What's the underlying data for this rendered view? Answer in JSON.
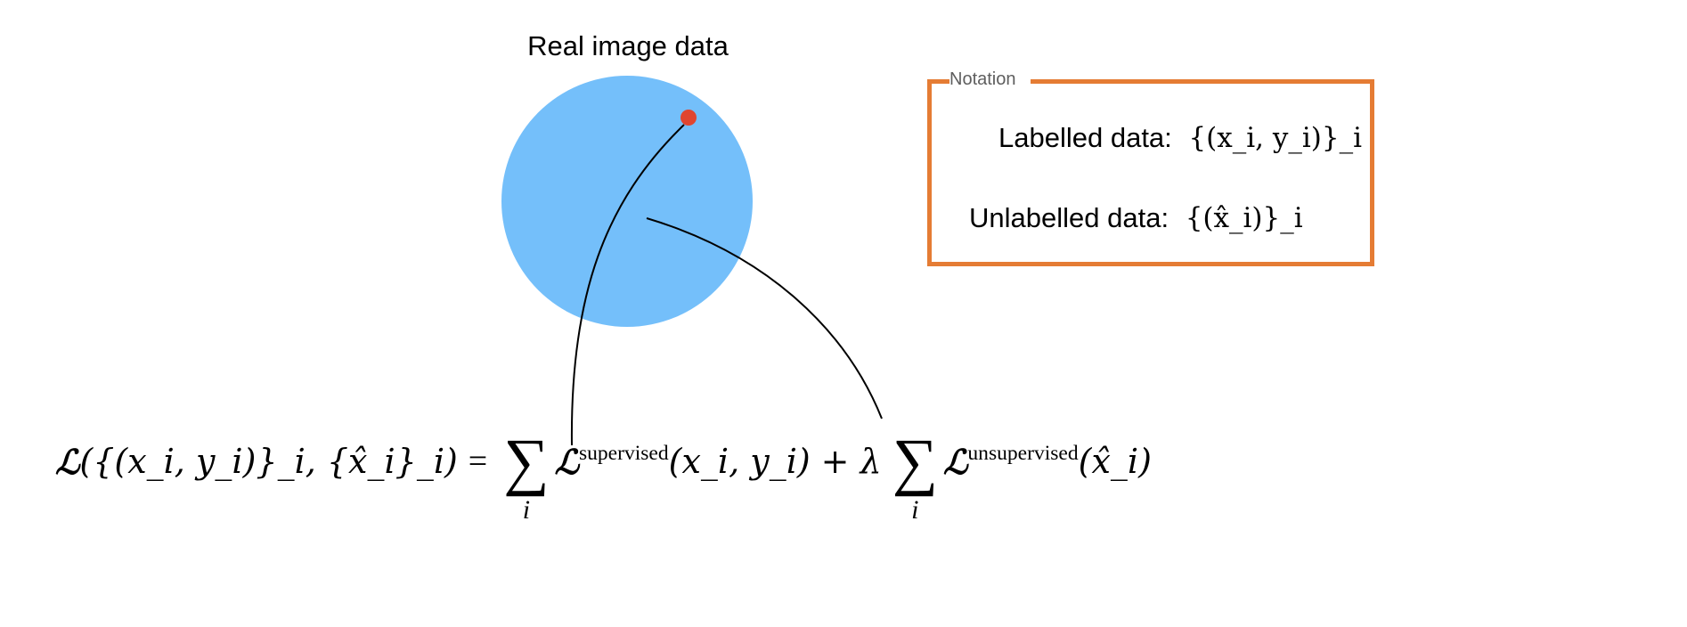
{
  "diagram": {
    "title": "Real image data",
    "colors": {
      "data_circle": "#74bffa",
      "labelled_point": "#e04530",
      "notation_border": "#e57c34",
      "notation_legend": "#5e5e5e"
    },
    "notation": {
      "legend": "Notation",
      "labelled_label": "Labelled data:",
      "labelled_math": "{(x_i, y_i)}_i",
      "unlabelled_label": "Unlabelled data:",
      "unlabelled_math": "{(x̂_i)}_i"
    },
    "formula": {
      "lhs_symbol": "ℒ",
      "lhs_args": "({(x_i, y_i)}_i, {x̂_i}_i)",
      "equals": "=",
      "sum_symbol": "∑",
      "sum_index": "i",
      "supervised_sub": "supervised",
      "supervised_args": "(x_i, y_i)",
      "plus_lambda": "+ λ",
      "unsupervised_sub": "unsupervised",
      "unsupervised_args": "(x̂_i)"
    }
  }
}
